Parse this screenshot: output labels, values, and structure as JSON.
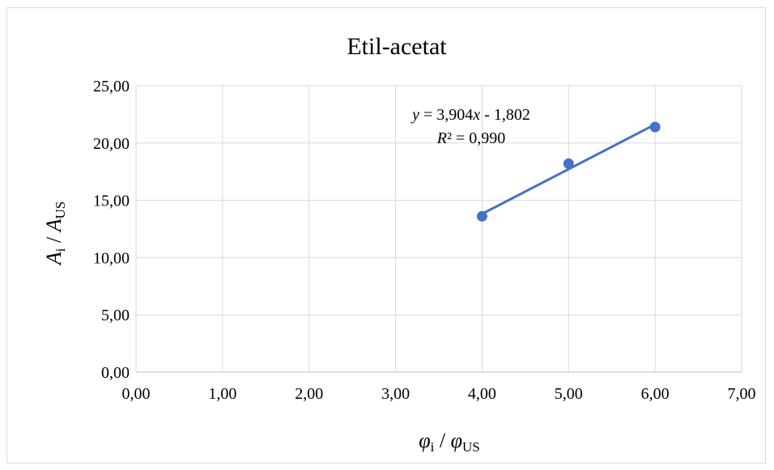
{
  "chart_data": {
    "type": "scatter",
    "title": "Etil-acetat",
    "xlabel": {
      "main": "φ",
      "sub": "i",
      "sep": " / ",
      "main2": "φ",
      "sub2": "US"
    },
    "ylabel": {
      "main": "A",
      "sub": "i",
      "sep": " / ",
      "main2": "A",
      "sub2": "US"
    },
    "x_ticks": [
      "0,00",
      "1,00",
      "2,00",
      "3,00",
      "4,00",
      "5,00",
      "6,00",
      "7,00"
    ],
    "y_ticks": [
      "0,00",
      "5,00",
      "10,00",
      "15,00",
      "20,00",
      "25,00"
    ],
    "xlim": [
      0,
      7
    ],
    "ylim": [
      0,
      25
    ],
    "grid": true,
    "series": [
      {
        "x": [
          4,
          5,
          6
        ],
        "y": [
          13.6,
          18.2,
          21.4
        ],
        "color": "#4472C4"
      }
    ],
    "trendline": {
      "slope": 3.904,
      "intercept": -1.802,
      "x_range": [
        4,
        6
      ],
      "equation_label": "y = 3,904x - 1,802",
      "r2_label": "R² = 0,990"
    }
  }
}
